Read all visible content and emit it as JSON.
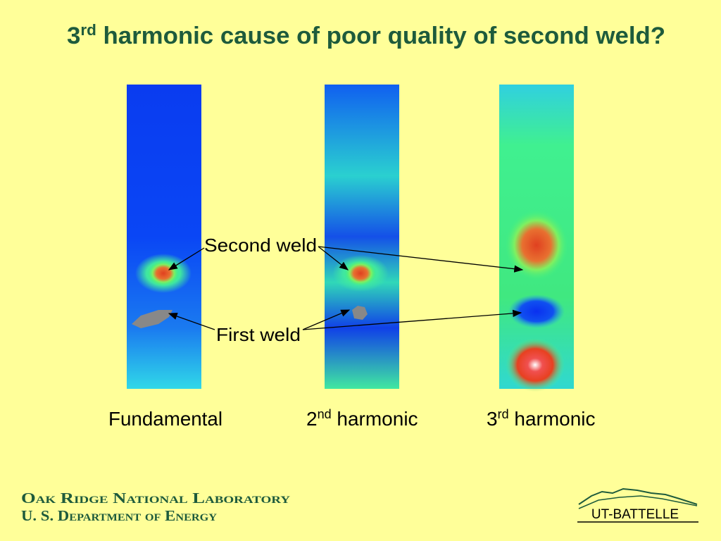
{
  "title": {
    "number": "3",
    "superscript": "rd",
    "text": " harmonic cause of poor quality of second weld?"
  },
  "annotations": {
    "second_weld": "Second weld",
    "first_weld": "First weld"
  },
  "captions": [
    {
      "text": "Fundamental"
    },
    {
      "number": "2",
      "superscript": "nd",
      "text": " harmonic"
    },
    {
      "number": "3",
      "superscript": "rd",
      "text": " harmonic"
    }
  ],
  "footer": {
    "lab": "Oak Ridge National Laboratory",
    "department": "U. S. Department of Energy",
    "logo": "UT-BATTELLE"
  }
}
